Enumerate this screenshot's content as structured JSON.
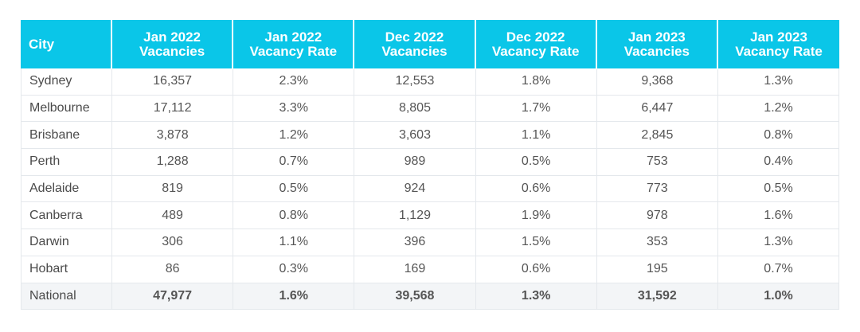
{
  "table": {
    "headers": [
      {
        "line1": "City",
        "line2": ""
      },
      {
        "line1": "Jan 2022",
        "line2": "Vacancies"
      },
      {
        "line1": "Jan 2022",
        "line2": "Vacancy Rate"
      },
      {
        "line1": "Dec 2022",
        "line2": "Vacancies"
      },
      {
        "line1": "Dec 2022",
        "line2": "Vacancy Rate"
      },
      {
        "line1": "Jan 2023",
        "line2": "Vacancies"
      },
      {
        "line1": "Jan 2023",
        "line2": "Vacancy Rate"
      }
    ],
    "rows": [
      [
        "Sydney",
        "16,357",
        "2.3%",
        "12,553",
        "1.8%",
        "9,368",
        "1.3%"
      ],
      [
        "Melbourne",
        "17,112",
        "3.3%",
        "8,805",
        "1.7%",
        "6,447",
        "1.2%"
      ],
      [
        "Brisbane",
        "3,878",
        "1.2%",
        "3,603",
        "1.1%",
        "2,845",
        "0.8%"
      ],
      [
        "Perth",
        "1,288",
        "0.7%",
        "989",
        "0.5%",
        "753",
        "0.4%"
      ],
      [
        "Adelaide",
        "819",
        "0.5%",
        "924",
        "0.6%",
        "773",
        "0.5%"
      ],
      [
        "Canberra",
        "489",
        "0.8%",
        "1,129",
        "1.9%",
        "978",
        "1.6%"
      ],
      [
        "Darwin",
        "306",
        "1.1%",
        "396",
        "1.5%",
        "353",
        "1.3%"
      ],
      [
        "Hobart",
        "86",
        "0.3%",
        "169",
        "0.6%",
        "195",
        "0.7%"
      ],
      [
        "National",
        "47,977",
        "1.6%",
        "39,568",
        "1.3%",
        "31,592",
        "1.0%"
      ]
    ]
  },
  "colors": {
    "header_bg": "#0ac6e8",
    "header_text": "#ffffff",
    "national_row_bg": "#f3f5f7",
    "cell_text": "#555555",
    "border": "#e4e8ec"
  }
}
